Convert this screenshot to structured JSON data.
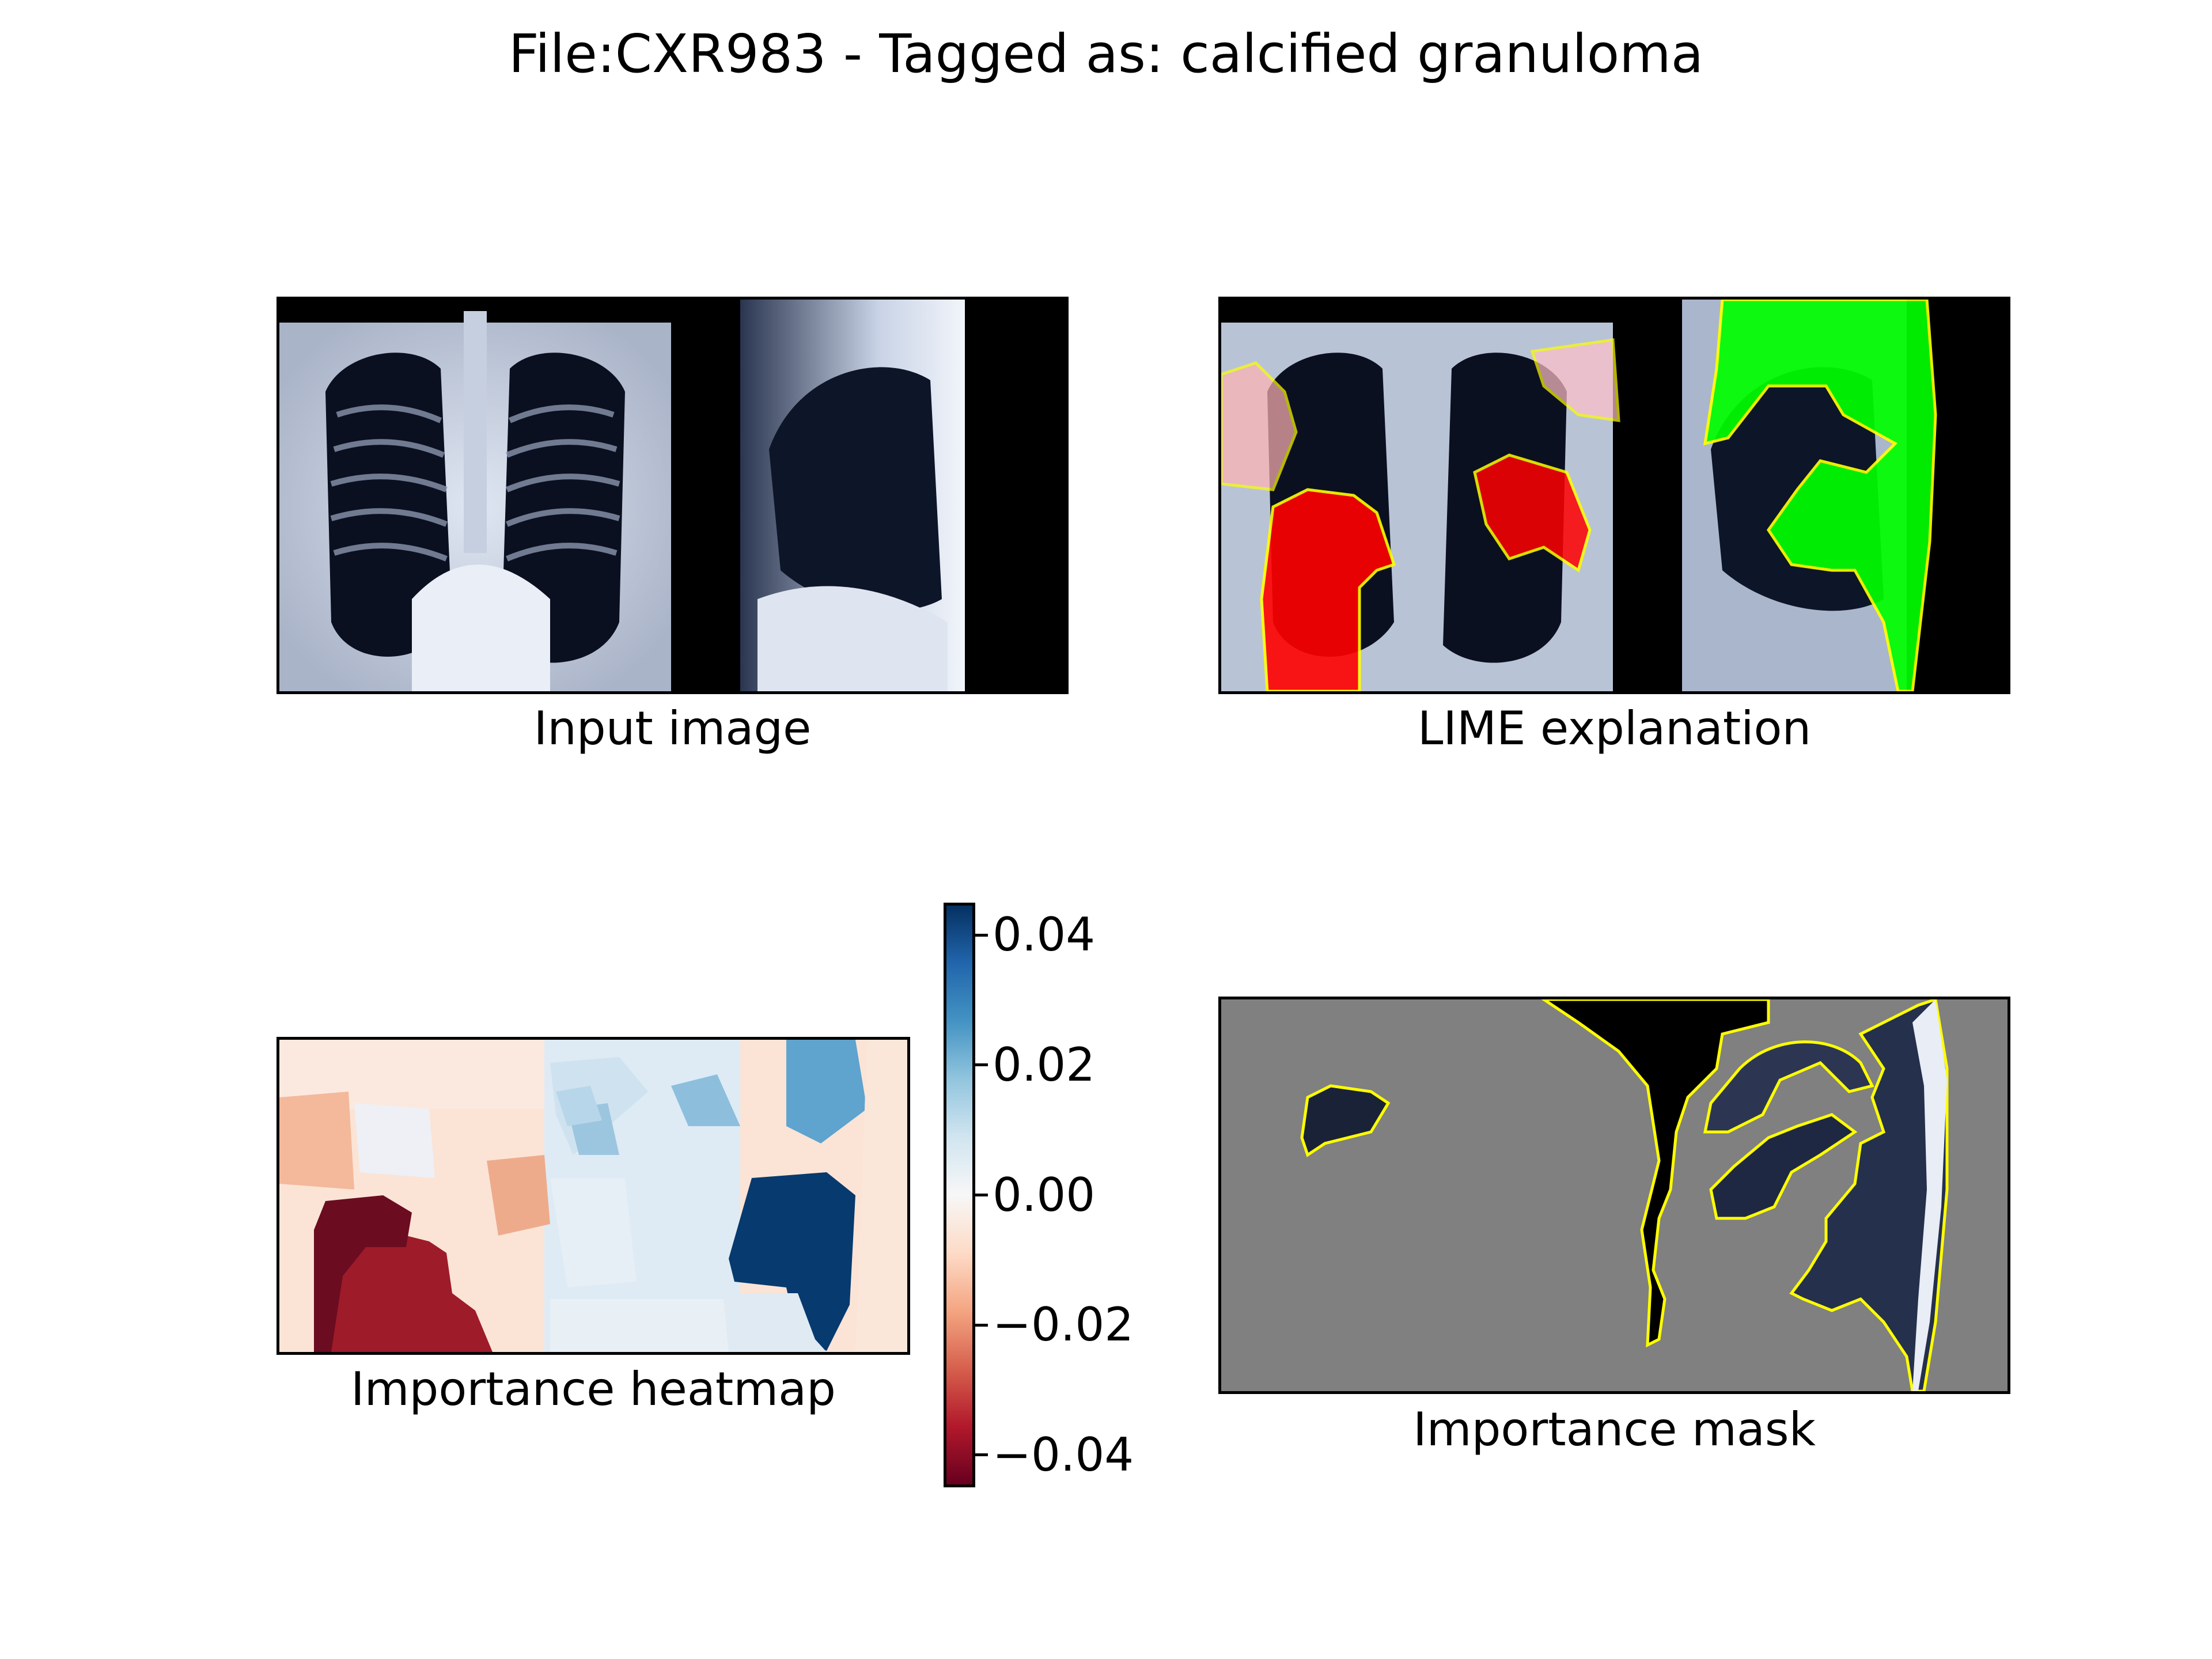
{
  "figure": {
    "title": "File:CXR983 - Tagged as: calcified granuloma"
  },
  "panels": {
    "input": {
      "caption": "Input image"
    },
    "lime": {
      "caption": "LIME explanation"
    },
    "heatmap": {
      "caption": "Importance heatmap"
    },
    "mask": {
      "caption": "Importance mask"
    }
  },
  "colorbar": {
    "colormap": "RdBu",
    "range": [
      -0.045,
      0.045
    ],
    "ticks": [
      {
        "value": 0.04,
        "label": "0.04"
      },
      {
        "value": 0.02,
        "label": "0.02"
      },
      {
        "value": 0.0,
        "label": "0.00"
      },
      {
        "value": -0.02,
        "label": "−0.02"
      },
      {
        "value": -0.04,
        "label": "−0.04"
      }
    ]
  },
  "chart_data": {
    "type": "heatmap",
    "title": "File:CXR983 - Tagged as: calcified granuloma",
    "colorbar_range": [
      -0.045,
      0.045
    ],
    "colormap": "RdBu",
    "colors": {
      "positive_overlay": "#00ff00",
      "negative_overlay": "#ff0000",
      "boundary": "#ffff00",
      "mask_background": "#808080"
    }
  }
}
